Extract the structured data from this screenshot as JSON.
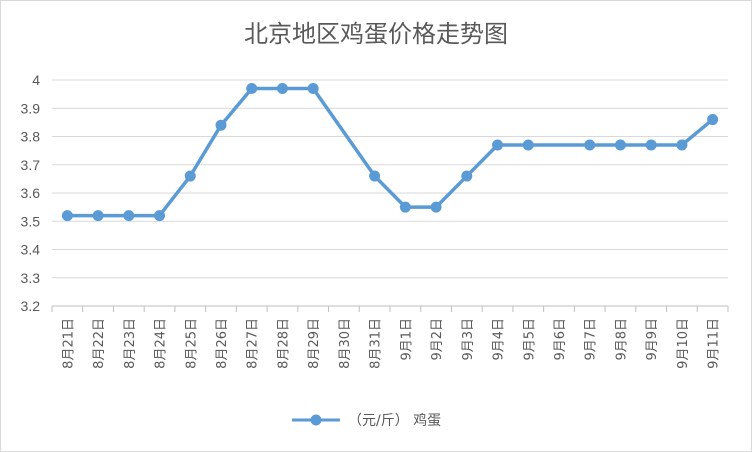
{
  "chart_data": {
    "type": "line",
    "title": "北京地区鸡蛋价格走势图",
    "categories": [
      "8月21日",
      "8月22日",
      "8月23日",
      "8月24日",
      "8月25日",
      "8月26日",
      "8月27日",
      "8月28日",
      "8月29日",
      "8月30日",
      "8月31日",
      "9月1日",
      "9月2日",
      "9月3日",
      "9月4日",
      "9月5日",
      "9月6日",
      "9月7日",
      "9月8日",
      "9月9日",
      "9月10日",
      "9月11日"
    ],
    "series": [
      {
        "name": "（元/斤） 鸡蛋",
        "values": [
          3.52,
          3.52,
          3.52,
          3.52,
          3.66,
          3.84,
          3.97,
          3.97,
          3.97,
          null,
          3.66,
          3.55,
          3.55,
          3.66,
          3.77,
          3.77,
          null,
          3.77,
          3.77,
          3.77,
          3.77,
          3.86
        ],
        "color": "#5b9bd5"
      }
    ],
    "ylim": [
      3.2,
      4.0
    ],
    "yticks": [
      "3.2",
      "3.3",
      "3.4",
      "3.5",
      "3.6",
      "3.7",
      "3.8",
      "3.9",
      "4"
    ],
    "grid": true,
    "legend": "bottom",
    "xlabel": "",
    "ylabel": ""
  }
}
